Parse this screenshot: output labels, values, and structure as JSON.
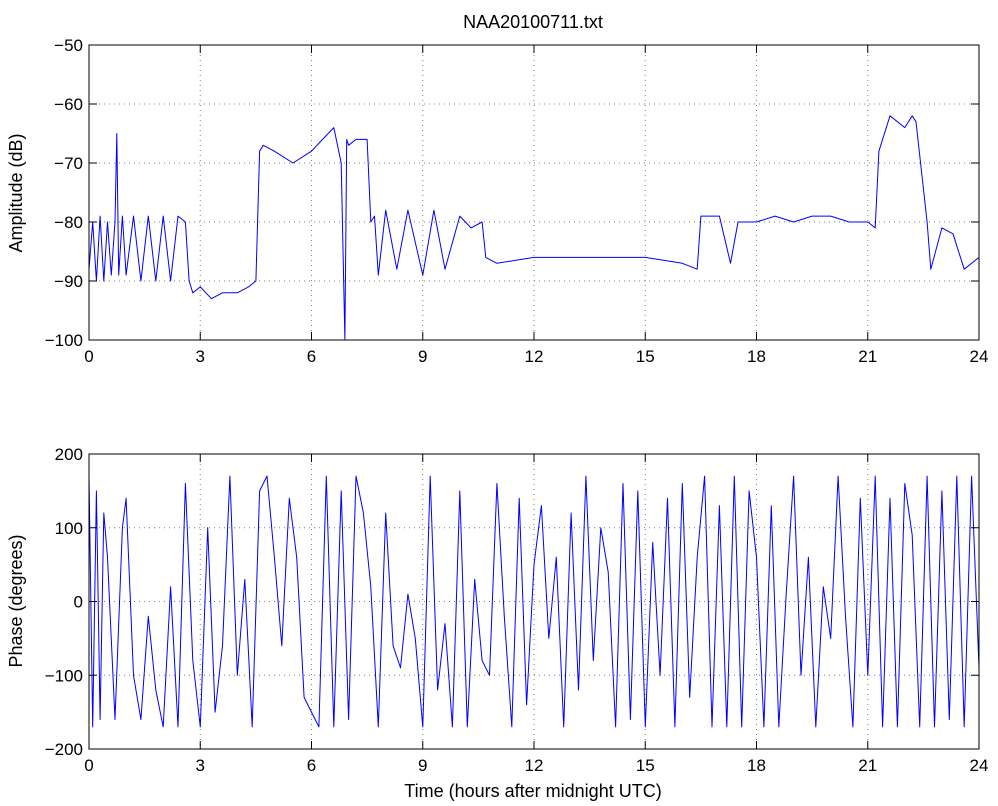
{
  "chart_data": [
    {
      "type": "line",
      "title": "NAA20100711.txt",
      "xlabel": "",
      "ylabel": "Amplitude (dB)",
      "xlim": [
        0,
        24
      ],
      "ylim": [
        -100,
        -50
      ],
      "x_ticks": [
        0,
        3,
        6,
        9,
        12,
        15,
        18,
        21,
        24
      ],
      "y_ticks": [
        -100,
        -90,
        -80,
        -70,
        -60,
        -50
      ],
      "x_tick_labels": [
        "0",
        "3",
        "6",
        "9",
        "12",
        "15",
        "18",
        "21",
        "24"
      ],
      "y_tick_labels": [
        "−100",
        "−90",
        "−80",
        "−70",
        "−60",
        "−50"
      ],
      "grid": true,
      "color": "#0000ff",
      "series": [
        {
          "x": [
            0,
            0.1,
            0.2,
            0.3,
            0.4,
            0.5,
            0.6,
            0.7,
            0.75,
            0.8,
            0.9,
            1.0,
            1.2,
            1.4,
            1.6,
            1.8,
            2.0,
            2.2,
            2.4,
            2.6,
            2.7,
            2.8,
            3.0,
            3.3,
            3.6,
            4.0,
            4.3,
            4.5,
            4.6,
            4.7,
            5.0,
            5.5,
            6.0,
            6.3,
            6.6,
            6.8,
            6.9,
            6.95,
            7.0,
            7.2,
            7.5,
            7.6,
            7.7,
            7.8,
            8.0,
            8.3,
            8.6,
            9.0,
            9.3,
            9.6,
            10.0,
            10.3,
            10.6,
            10.7,
            11.0,
            12.0,
            13.0,
            14.0,
            15.0,
            16.0,
            16.4,
            16.5,
            17.0,
            17.3,
            17.5,
            18.0,
            18.5,
            19.0,
            19.5,
            20.0,
            20.5,
            21.0,
            21.2,
            21.3,
            21.6,
            22.0,
            22.2,
            22.3,
            22.6,
            22.7,
            23.0,
            23.3,
            23.6,
            24.0
          ],
          "y": [
            -88,
            -80,
            -90,
            -79,
            -90,
            -80,
            -89,
            -80,
            -65,
            -89,
            -79,
            -89,
            -79,
            -90,
            -79,
            -90,
            -79,
            -90,
            -79,
            -80,
            -90,
            -92,
            -91,
            -93,
            -92,
            -92,
            -91,
            -90,
            -68,
            -67,
            -68,
            -70,
            -68,
            -66,
            -64,
            -70,
            -100,
            -66,
            -67,
            -66,
            -66,
            -80,
            -79,
            -89,
            -78,
            -88,
            -78,
            -89,
            -78,
            -88,
            -79,
            -81,
            -80,
            -86,
            -87,
            -86,
            -86,
            -86,
            -86,
            -87,
            -88,
            -79,
            -79,
            -87,
            -80,
            -80,
            -79,
            -80,
            -79,
            -79,
            -80,
            -80,
            -81,
            -68,
            -62,
            -64,
            -62,
            -63,
            -80,
            -88,
            -81,
            -82,
            -88,
            -86
          ]
        }
      ]
    },
    {
      "type": "line",
      "title": "",
      "xlabel": "Time (hours after midnight UTC)",
      "ylabel": "Phase (degrees)",
      "xlim": [
        0,
        24
      ],
      "ylim": [
        -200,
        200
      ],
      "x_ticks": [
        0,
        3,
        6,
        9,
        12,
        15,
        18,
        21,
        24
      ],
      "y_ticks": [
        -200,
        -100,
        0,
        100,
        200
      ],
      "x_tick_labels": [
        "0",
        "3",
        "6",
        "9",
        "12",
        "15",
        "18",
        "21",
        "24"
      ],
      "y_tick_labels": [
        "−200",
        "−100",
        "0",
        "100",
        "200"
      ],
      "grid": true,
      "color": "#0000ff",
      "series": [
        {
          "x": [
            0,
            0.1,
            0.2,
            0.3,
            0.4,
            0.5,
            0.7,
            0.9,
            1.0,
            1.2,
            1.4,
            1.6,
            1.8,
            2.0,
            2.2,
            2.4,
            2.6,
            2.8,
            3.0,
            3.2,
            3.4,
            3.6,
            3.8,
            4.0,
            4.2,
            4.4,
            4.6,
            4.8,
            5.0,
            5.2,
            5.4,
            5.6,
            5.8,
            6.0,
            6.2,
            6.4,
            6.6,
            6.8,
            7.0,
            7.2,
            7.4,
            7.6,
            7.8,
            8.0,
            8.2,
            8.4,
            8.6,
            8.8,
            9.0,
            9.2,
            9.4,
            9.6,
            9.8,
            10.0,
            10.2,
            10.4,
            10.6,
            10.8,
            11.0,
            11.2,
            11.4,
            11.6,
            11.8,
            12.0,
            12.2,
            12.4,
            12.6,
            12.8,
            13.0,
            13.2,
            13.4,
            13.6,
            13.8,
            14.0,
            14.2,
            14.4,
            14.6,
            14.8,
            15.0,
            15.2,
            15.4,
            15.6,
            15.8,
            16.0,
            16.2,
            16.4,
            16.6,
            16.8,
            17.0,
            17.2,
            17.4,
            17.6,
            17.8,
            18.0,
            18.2,
            18.4,
            18.6,
            18.8,
            19.0,
            19.2,
            19.4,
            19.6,
            19.8,
            20.0,
            20.2,
            20.4,
            20.6,
            20.8,
            21.0,
            21.2,
            21.4,
            21.6,
            21.8,
            22.0,
            22.2,
            22.4,
            22.6,
            22.8,
            23.0,
            23.2,
            23.4,
            23.6,
            23.8,
            24.0
          ],
          "y": [
            170,
            -170,
            150,
            -160,
            120,
            60,
            -160,
            100,
            140,
            -100,
            -160,
            -20,
            -120,
            -170,
            20,
            -170,
            160,
            -80,
            -170,
            100,
            -150,
            -60,
            170,
            -100,
            30,
            -170,
            150,
            170,
            60,
            -60,
            140,
            60,
            -130,
            -150,
            -170,
            170,
            -170,
            150,
            -160,
            170,
            120,
            20,
            -170,
            120,
            -60,
            -90,
            10,
            -50,
            -170,
            170,
            -120,
            -30,
            -170,
            150,
            -170,
            30,
            -80,
            -100,
            160,
            -20,
            -170,
            140,
            -140,
            50,
            130,
            -50,
            60,
            -170,
            120,
            -120,
            170,
            -80,
            100,
            40,
            -170,
            160,
            -160,
            150,
            -170,
            80,
            -100,
            140,
            -170,
            160,
            -130,
            60,
            170,
            -170,
            130,
            -170,
            170,
            -170,
            150,
            60,
            -170,
            130,
            -170,
            10,
            170,
            -100,
            60,
            -170,
            20,
            -50,
            170,
            -20,
            -170,
            140,
            -100,
            170,
            -170,
            140,
            -170,
            160,
            90,
            -170,
            170,
            -170,
            150,
            -160,
            170,
            -170,
            170,
            -90
          ]
        }
      ]
    }
  ]
}
